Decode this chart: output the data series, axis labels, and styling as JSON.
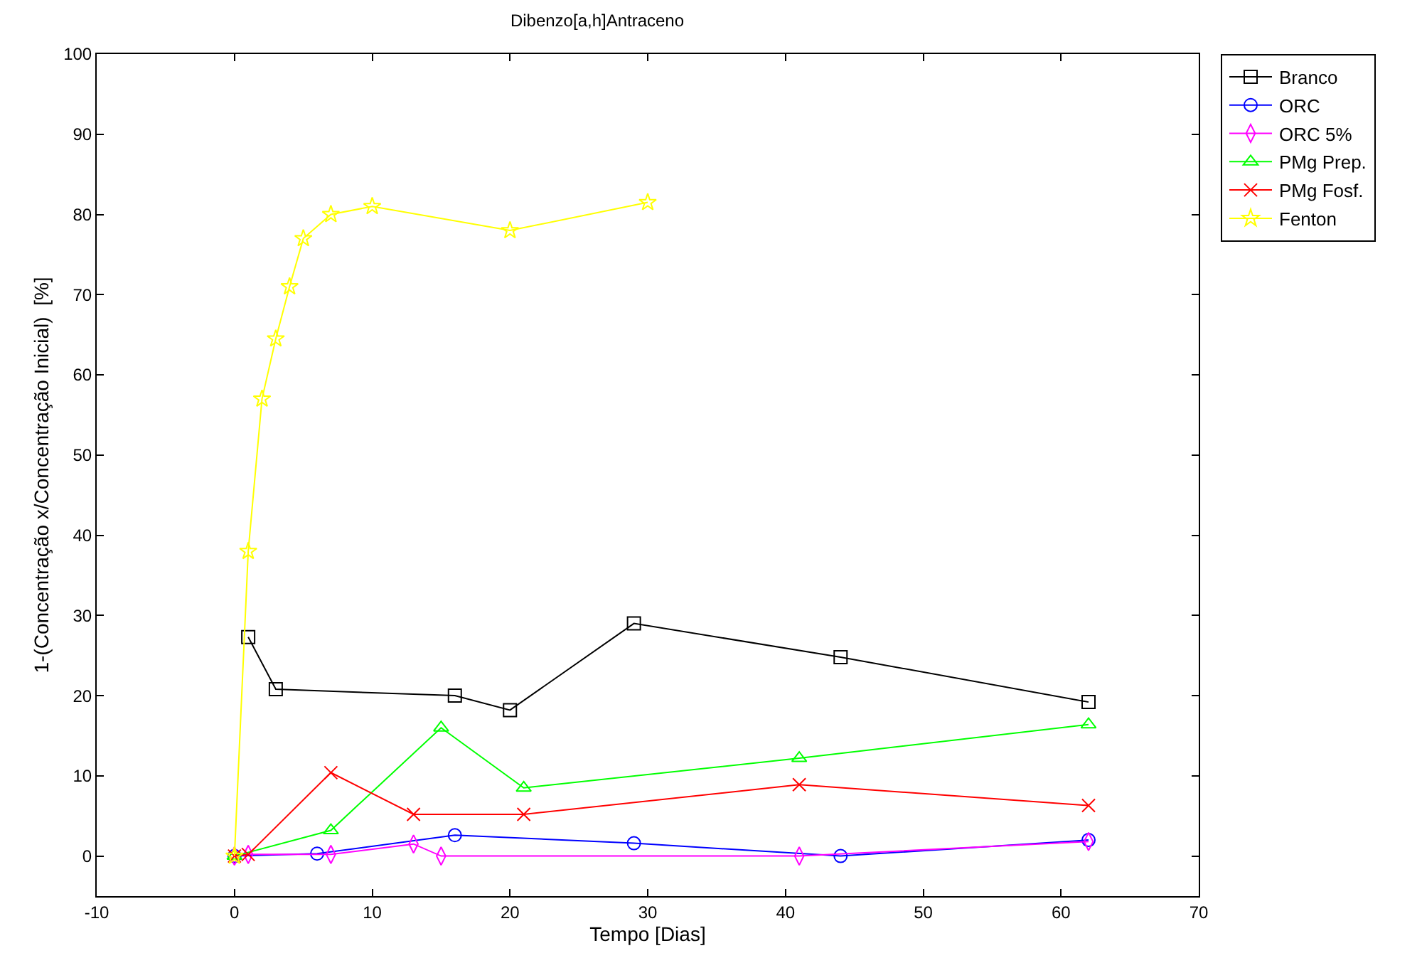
{
  "chart_data": {
    "type": "line",
    "title": "Dibenzo[a,h]Antraceno",
    "xlabel": "Tempo [Dias]",
    "ylabel": "1-(Concentração x/Concentração Inicial)  [%]",
    "xlim": [
      -10,
      70
    ],
    "xticks": [
      -10,
      0,
      10,
      20,
      30,
      40,
      50,
      60,
      70
    ],
    "ylim": [
      -5,
      100
    ],
    "yticks": [
      0,
      10,
      20,
      30,
      40,
      50,
      60,
      70,
      80,
      90,
      100
    ],
    "grid": false,
    "legend": "right",
    "line_style": "solid",
    "series": [
      {
        "name": "Branco",
        "color": "#000000",
        "marker": "square",
        "x": [
          1,
          3,
          16,
          20,
          29,
          44,
          62
        ],
        "values": [
          27.3,
          20.8,
          20,
          18.2,
          29,
          24.8,
          19.2
        ]
      },
      {
        "name": "ORC",
        "color": "#0000ff",
        "marker": "circle",
        "x": [
          0,
          6,
          16,
          29,
          44,
          62
        ],
        "values": [
          0,
          0.3,
          2.6,
          1.6,
          0,
          2
        ]
      },
      {
        "name": "ORC 5%",
        "color": "#ff00ff",
        "marker": "diamond",
        "x": [
          0,
          1,
          7,
          13,
          15,
          41,
          62
        ],
        "values": [
          0,
          0.2,
          0.2,
          1.5,
          0,
          0,
          1.8
        ]
      },
      {
        "name": "PMg Prep.",
        "color": "#00ff00",
        "marker": "triangle",
        "x": [
          0,
          7,
          15,
          21,
          41,
          62
        ],
        "values": [
          0,
          3.2,
          16,
          8.5,
          12.2,
          16.4
        ]
      },
      {
        "name": "PMg Fosf.",
        "color": "#ff0000",
        "marker": "cross",
        "x": [
          0,
          1,
          7,
          13,
          21,
          41,
          62
        ],
        "values": [
          0,
          0.2,
          10.4,
          5.2,
          5.2,
          8.9,
          6.3
        ]
      },
      {
        "name": "Fenton",
        "color": "#ffff00",
        "marker": "star",
        "x": [
          0,
          1,
          2,
          3,
          4,
          5,
          7,
          10,
          20,
          30
        ],
        "values": [
          0,
          38,
          57,
          64.5,
          71,
          77,
          80,
          81,
          78,
          81.5
        ]
      }
    ]
  }
}
